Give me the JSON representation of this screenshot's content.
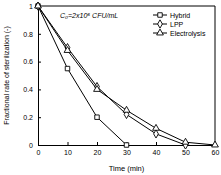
{
  "chart_data": {
    "type": "line",
    "x_label": "Time (min)",
    "y_label": "Fractional rate of sterilization (-)",
    "annotations": [
      "C₀=2x10⁶ CFU/mL"
    ],
    "x": [
      0,
      10,
      20,
      30,
      40,
      50,
      60
    ],
    "series": [
      {
        "name": "Hybrid",
        "color": "#000000",
        "marker": "square",
        "values": [
          1,
          0.55,
          0.2,
          0,
          null,
          null,
          null
        ]
      },
      {
        "name": "LPP",
        "color": "#000000",
        "marker": "diamond",
        "values": [
          1,
          0.7,
          0.42,
          0.22,
          0.08,
          0,
          null
        ]
      },
      {
        "name": "Electrolysis",
        "color": "#000000",
        "marker": "triangle",
        "values": [
          1,
          0.68,
          0.4,
          0.25,
          0.12,
          0.02,
          0
        ]
      }
    ],
    "xlim": [
      0,
      60
    ],
    "xticks": [
      0,
      10,
      20,
      30,
      40,
      50,
      60
    ],
    "ylim": [
      0,
      1
    ],
    "yticks": [
      0,
      0.2,
      0.4,
      0.6,
      0.8,
      1
    ],
    "grid": false,
    "legend": "upper right"
  }
}
